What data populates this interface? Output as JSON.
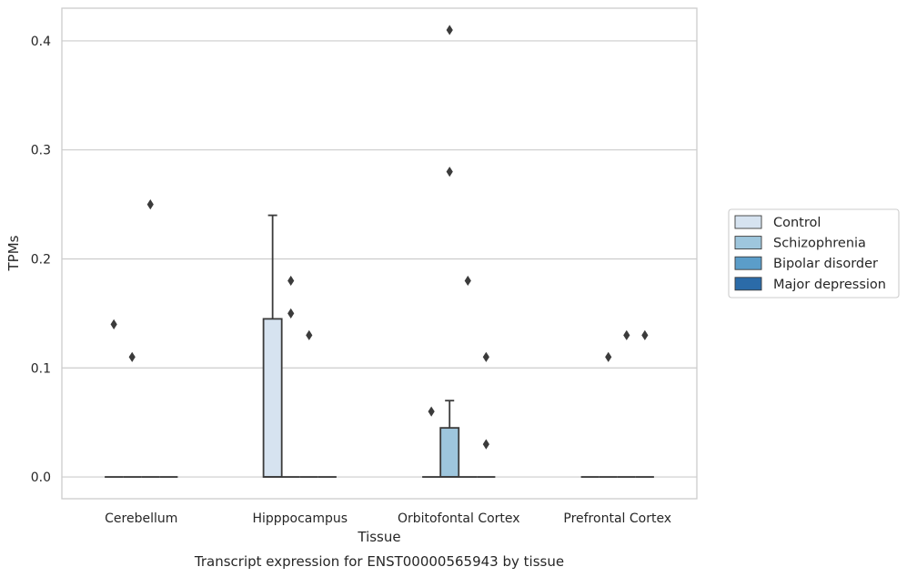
{
  "chart_data": {
    "type": "box",
    "title": "Transcript expression for ENST00000565943 by tissue",
    "xlabel": "Tissue",
    "ylabel": "TPMs",
    "ylim": [
      -0.02,
      0.43
    ],
    "yticks": [
      0.0,
      0.1,
      0.2,
      0.3,
      0.4
    ],
    "ytick_labels": [
      "0.0",
      "0.1",
      "0.2",
      "0.3",
      "0.4"
    ],
    "grid": true,
    "legend_position": "right",
    "categories": [
      "Cerebellum",
      "Hipppocampus",
      "Orbitofontal Cortex",
      "Prefrontal Cortex"
    ],
    "series": [
      {
        "name": "Control",
        "color": "#d6e3f0",
        "boxes": [
          {
            "q1": 0,
            "median": 0,
            "q3": 0,
            "whisker_low": 0,
            "whisker_high": 0,
            "outliers": [
              0.14
            ]
          },
          {
            "q1": 0,
            "median": 0,
            "q3": 0.145,
            "whisker_low": 0,
            "whisker_high": 0.24,
            "outliers": []
          },
          {
            "q1": 0,
            "median": 0,
            "q3": 0,
            "whisker_low": 0,
            "whisker_high": 0,
            "outliers": [
              0.06
            ]
          },
          {
            "q1": 0,
            "median": 0,
            "q3": 0,
            "whisker_low": 0,
            "whisker_high": 0,
            "outliers": []
          }
        ]
      },
      {
        "name": "Schizophrenia",
        "color": "#9ec6dd",
        "boxes": [
          {
            "q1": 0,
            "median": 0,
            "q3": 0,
            "whisker_low": 0,
            "whisker_high": 0,
            "outliers": [
              0.11
            ]
          },
          {
            "q1": 0,
            "median": 0,
            "q3": 0,
            "whisker_low": 0,
            "whisker_high": 0,
            "outliers": [
              0.18,
              0.15
            ]
          },
          {
            "q1": 0,
            "median": 0,
            "q3": 0.045,
            "whisker_low": 0,
            "whisker_high": 0.07,
            "outliers": [
              0.41,
              0.28
            ]
          },
          {
            "q1": 0,
            "median": 0,
            "q3": 0,
            "whisker_low": 0,
            "whisker_high": 0,
            "outliers": [
              0.11
            ]
          }
        ]
      },
      {
        "name": "Bipolar disorder",
        "color": "#5b9dc9",
        "boxes": [
          {
            "q1": 0,
            "median": 0,
            "q3": 0,
            "whisker_low": 0,
            "whisker_high": 0,
            "outliers": [
              0.25
            ]
          },
          {
            "q1": 0,
            "median": 0,
            "q3": 0,
            "whisker_low": 0,
            "whisker_high": 0,
            "outliers": [
              0.13
            ]
          },
          {
            "q1": 0,
            "median": 0,
            "q3": 0,
            "whisker_low": 0,
            "whisker_high": 0,
            "outliers": [
              0.18
            ]
          },
          {
            "q1": 0,
            "median": 0,
            "q3": 0,
            "whisker_low": 0,
            "whisker_high": 0,
            "outliers": [
              0.13
            ]
          }
        ]
      },
      {
        "name": "Major depression",
        "color": "#2b6ba8",
        "boxes": [
          {
            "q1": 0,
            "median": 0,
            "q3": 0,
            "whisker_low": 0,
            "whisker_high": 0,
            "outliers": []
          },
          {
            "q1": 0,
            "median": 0,
            "q3": 0,
            "whisker_low": 0,
            "whisker_high": 0,
            "outliers": []
          },
          {
            "q1": 0,
            "median": 0,
            "q3": 0,
            "whisker_low": 0,
            "whisker_high": 0,
            "outliers": [
              0.11,
              0.03
            ]
          },
          {
            "q1": 0,
            "median": 0,
            "q3": 0,
            "whisker_low": 0,
            "whisker_high": 0,
            "outliers": [
              0.13
            ]
          }
        ]
      }
    ]
  }
}
